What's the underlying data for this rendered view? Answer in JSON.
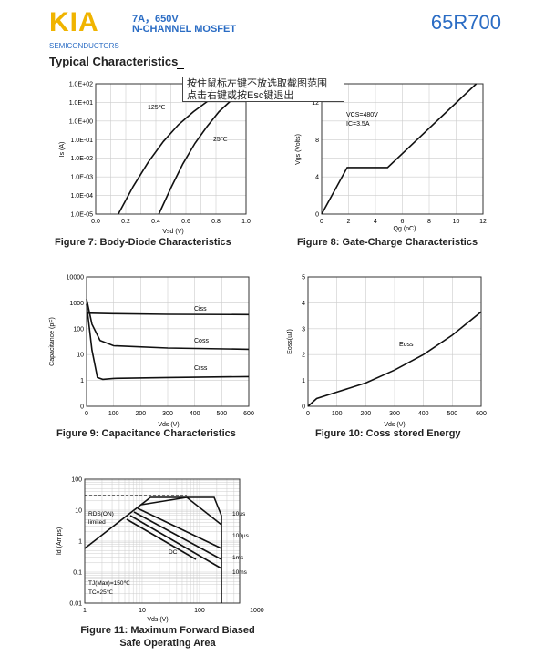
{
  "header": {
    "logo": "KIA",
    "logo_sub": "SEMICONDUCTORS",
    "line1": "7A，650V",
    "line2": "N-CHANNEL MOSFET",
    "part": "65R700"
  },
  "section_title": "Typical Characteristics",
  "tooltip": {
    "line1": "按住鼠标左键不放选取截图范围",
    "line2": "点击右键或按Esc键退出"
  },
  "colors": {
    "brand_yellow": "#f0b400",
    "brand_blue": "#2a6cc4"
  },
  "chart_data": [
    {
      "type": "line",
      "caption": "Figure 7: Body-Diode Characteristics",
      "xlabel": "Vsd (V)",
      "ylabel": "Is (A)",
      "xlim": [
        0,
        1.0
      ],
      "ylim": [
        "1.0E-05",
        "1.0E+02"
      ],
      "yscale": "log",
      "xticks": [
        "0.0",
        "0.2",
        "0.4",
        "0.6",
        "0.8",
        "1.0"
      ],
      "yticks": [
        "1.0E+02",
        "1.0E+01",
        "1.0E+00",
        "1.0E-01",
        "1.0E-02",
        "1.0E-03",
        "1.0E-04",
        "1.0E-05"
      ],
      "series": [
        {
          "name": "125℃",
          "x": [
            0.15,
            0.25,
            0.35,
            0.45,
            0.55,
            0.65,
            0.75,
            0.85
          ],
          "y": [
            -5,
            -3.5,
            -2.2,
            -1.1,
            -0.2,
            0.5,
            1.1,
            1.6
          ]
        },
        {
          "name": "25℃",
          "x": [
            0.42,
            0.5,
            0.58,
            0.66,
            0.74,
            0.82,
            0.9,
            0.96
          ],
          "y": [
            -5,
            -3.6,
            -2.3,
            -1.2,
            -0.3,
            0.5,
            1.1,
            1.5
          ]
        }
      ]
    },
    {
      "type": "line",
      "caption": "Figure 8: Gate-Charge Characteristics",
      "xlabel": "Qg (nC)",
      "ylabel": "Vgs (Volts)",
      "xlim": [
        0,
        12
      ],
      "ylim": [
        0,
        14
      ],
      "xticks": [
        "0",
        "2",
        "4",
        "6",
        "8",
        "10",
        "12"
      ],
      "yticks": [
        "0",
        "4",
        "8",
        "12"
      ],
      "annotations": [
        "Vcs=480V",
        "Ic=3.5A"
      ],
      "series": [
        {
          "x": [
            0,
            1.9,
            4.9,
            11.5
          ],
          "y": [
            0,
            5,
            5,
            14
          ]
        }
      ]
    },
    {
      "type": "line",
      "caption": "Figure 9: Capacitance Characteristics",
      "xlabel": "Vds (V)",
      "ylabel": "Capacitance (pF)",
      "xlim": [
        0,
        600
      ],
      "yscale": "log",
      "xticks": [
        "0",
        "100",
        "200",
        "300",
        "400",
        "500",
        "600"
      ],
      "yticks": [
        "10000",
        "1000",
        "100",
        "10",
        "1",
        "0"
      ],
      "series": [
        {
          "name": "Ciss",
          "x": [
            0,
            100,
            300,
            600
          ],
          "y": [
            400,
            380,
            360,
            350
          ]
        },
        {
          "name": "Coss",
          "x": [
            0,
            20,
            50,
            100,
            300,
            600
          ],
          "y": [
            1400,
            150,
            35,
            22,
            18,
            16
          ]
        },
        {
          "name": "Crss",
          "x": [
            0,
            20,
            40,
            60,
            100,
            300,
            600
          ],
          "y": [
            900,
            15,
            1.3,
            1.1,
            1.2,
            1.3,
            1.4
          ]
        }
      ]
    },
    {
      "type": "line",
      "caption": "Figure 10: Coss stored Energy",
      "xlabel": "Vds (V)",
      "ylabel": "Eoss(uJ)",
      "xlim": [
        0,
        600
      ],
      "ylim": [
        0,
        5
      ],
      "xticks": [
        "0",
        "100",
        "200",
        "300",
        "400",
        "500",
        "600"
      ],
      "yticks": [
        "0",
        "1",
        "2",
        "3",
        "4",
        "5"
      ],
      "series": [
        {
          "name": "Eoss",
          "x": [
            0,
            30,
            100,
            200,
            300,
            400,
            500,
            600
          ],
          "y": [
            0,
            0.3,
            0.55,
            0.9,
            1.4,
            2.0,
            2.75,
            3.65
          ]
        }
      ]
    },
    {
      "type": "line",
      "caption_line1": "Figure 11: Maximum Forward Biased",
      "caption_line2": "Safe Operating Area",
      "xlabel": "Vds (V)",
      "ylabel": "Id (Amps)",
      "xscale": "log",
      "yscale": "log",
      "xticks": [
        "1",
        "10",
        "100",
        "1000"
      ],
      "yticks": [
        "100",
        "10",
        "1",
        "0.1",
        "0.01"
      ],
      "annotations": [
        "RDS(ON) limited",
        "DC",
        "10µs",
        "100µs",
        "1ms",
        "10ms",
        "TJ(Max)=150℃",
        "TC=25℃"
      ]
    }
  ],
  "labels": {
    "f7_125": "125℃",
    "f7_25": "25℃",
    "f8_ann1": "VCS=480V",
    "f8_ann2": "IC=3.5A",
    "f9_ciss": "Ciss",
    "f9_coss": "Coss",
    "f9_crss": "Crss",
    "f10_eoss": "Eoss",
    "f11_rds1": "RDS(ON)",
    "f11_rds2": "limited",
    "f11_dc": "DC",
    "f11_10us": "10µs",
    "f11_100us": "100µs",
    "f11_1ms": "1ms",
    "f11_10ms": "10ms",
    "f11_tj": "TJ(Max)=150℃",
    "f11_tc": "TC=25℃"
  }
}
